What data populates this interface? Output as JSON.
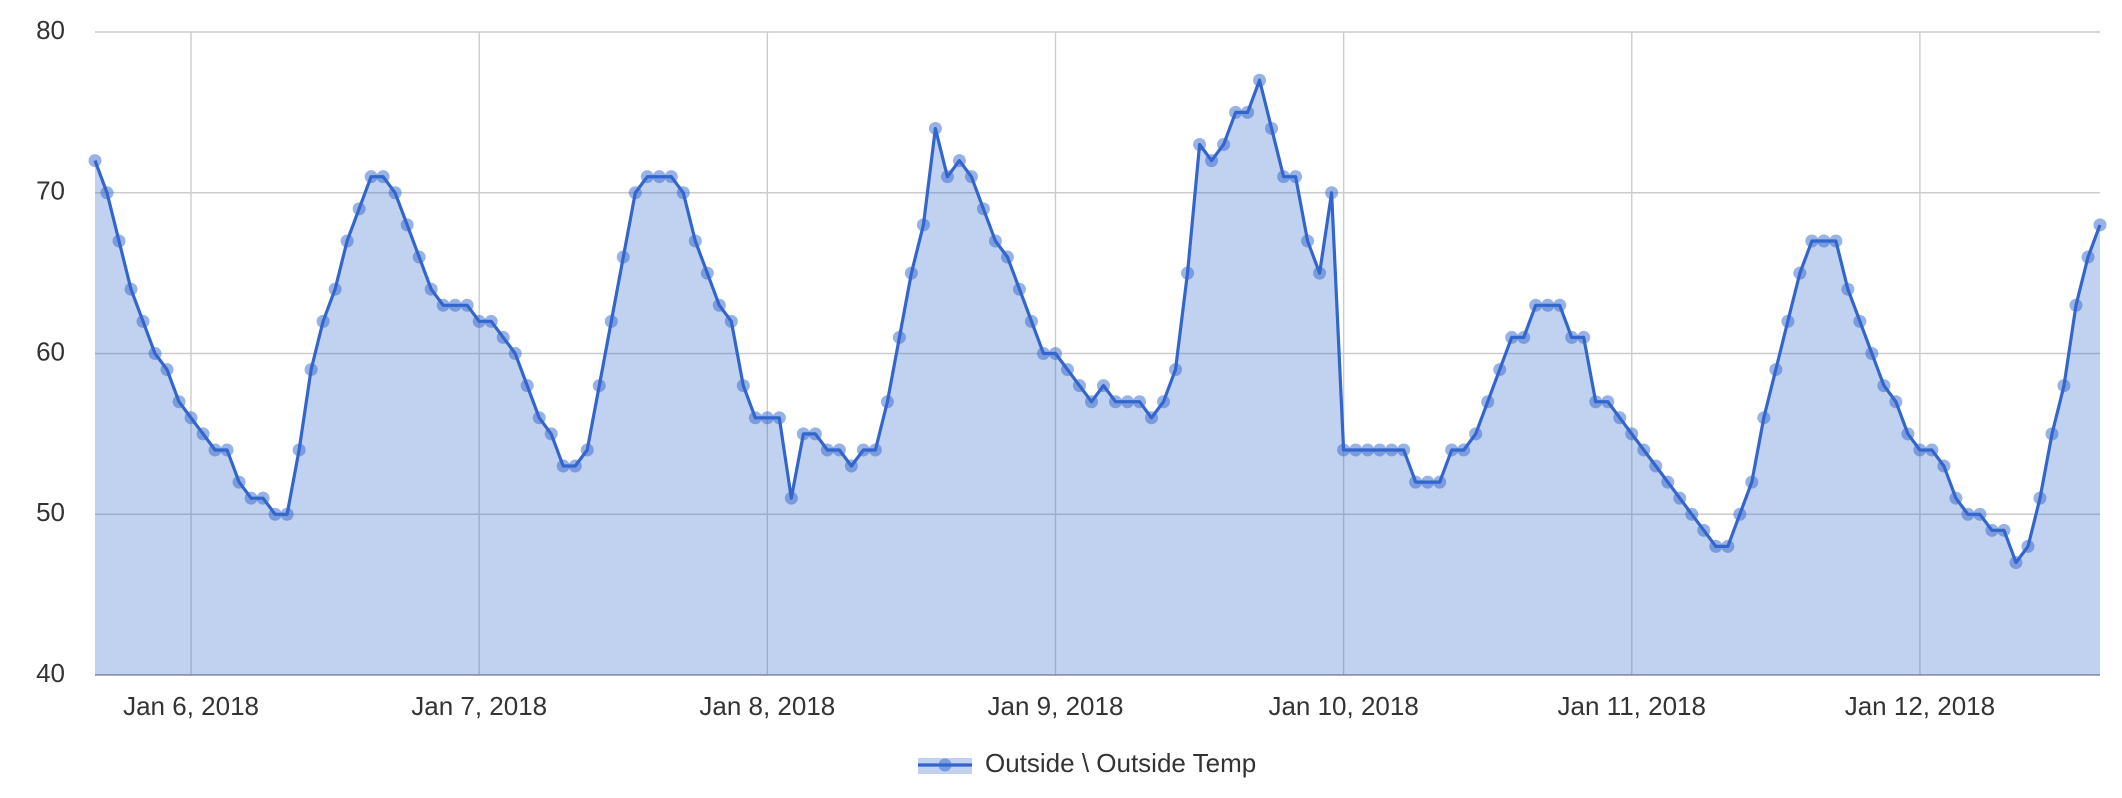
{
  "chart_data": {
    "type": "area",
    "x": [
      "2018-01-05T16:00",
      "2018-01-05T17:00",
      "2018-01-05T18:00",
      "2018-01-05T19:00",
      "2018-01-05T20:00",
      "2018-01-05T21:00",
      "2018-01-05T22:00",
      "2018-01-05T23:00",
      "2018-01-06T00:00",
      "2018-01-06T01:00",
      "2018-01-06T02:00",
      "2018-01-06T03:00",
      "2018-01-06T04:00",
      "2018-01-06T05:00",
      "2018-01-06T06:00",
      "2018-01-06T07:00",
      "2018-01-06T08:00",
      "2018-01-06T09:00",
      "2018-01-06T10:00",
      "2018-01-06T11:00",
      "2018-01-06T12:00",
      "2018-01-06T13:00",
      "2018-01-06T14:00",
      "2018-01-06T15:00",
      "2018-01-06T16:00",
      "2018-01-06T17:00",
      "2018-01-06T18:00",
      "2018-01-06T19:00",
      "2018-01-06T20:00",
      "2018-01-06T21:00",
      "2018-01-06T22:00",
      "2018-01-06T23:00",
      "2018-01-07T00:00",
      "2018-01-07T01:00",
      "2018-01-07T02:00",
      "2018-01-07T03:00",
      "2018-01-07T04:00",
      "2018-01-07T05:00",
      "2018-01-07T06:00",
      "2018-01-07T07:00",
      "2018-01-07T08:00",
      "2018-01-07T09:00",
      "2018-01-07T10:00",
      "2018-01-07T11:00",
      "2018-01-07T12:00",
      "2018-01-07T13:00",
      "2018-01-07T14:00",
      "2018-01-07T15:00",
      "2018-01-07T16:00",
      "2018-01-07T17:00",
      "2018-01-07T18:00",
      "2018-01-07T19:00",
      "2018-01-07T20:00",
      "2018-01-07T21:00",
      "2018-01-07T22:00",
      "2018-01-07T23:00",
      "2018-01-08T00:00",
      "2018-01-08T01:00",
      "2018-01-08T02:00",
      "2018-01-08T03:00",
      "2018-01-08T04:00",
      "2018-01-08T05:00",
      "2018-01-08T06:00",
      "2018-01-08T07:00",
      "2018-01-08T08:00",
      "2018-01-08T09:00",
      "2018-01-08T10:00",
      "2018-01-08T11:00",
      "2018-01-08T12:00",
      "2018-01-08T13:00",
      "2018-01-08T14:00",
      "2018-01-08T15:00",
      "2018-01-08T16:00",
      "2018-01-08T17:00",
      "2018-01-08T18:00",
      "2018-01-08T19:00",
      "2018-01-08T20:00",
      "2018-01-08T21:00",
      "2018-01-08T22:00",
      "2018-01-08T23:00",
      "2018-01-09T00:00",
      "2018-01-09T01:00",
      "2018-01-09T02:00",
      "2018-01-09T03:00",
      "2018-01-09T04:00",
      "2018-01-09T05:00",
      "2018-01-09T06:00",
      "2018-01-09T07:00",
      "2018-01-09T08:00",
      "2018-01-09T09:00",
      "2018-01-09T10:00",
      "2018-01-09T11:00",
      "2018-01-09T12:00",
      "2018-01-09T13:00",
      "2018-01-09T14:00",
      "2018-01-09T15:00",
      "2018-01-09T16:00",
      "2018-01-09T17:00",
      "2018-01-09T18:00",
      "2018-01-09T19:00",
      "2018-01-09T20:00",
      "2018-01-09T21:00",
      "2018-01-09T22:00",
      "2018-01-09T23:00",
      "2018-01-10T00:00",
      "2018-01-10T01:00",
      "2018-01-10T02:00",
      "2018-01-10T03:00",
      "2018-01-10T04:00",
      "2018-01-10T05:00",
      "2018-01-10T06:00",
      "2018-01-10T07:00",
      "2018-01-10T08:00",
      "2018-01-10T09:00",
      "2018-01-10T10:00",
      "2018-01-10T11:00",
      "2018-01-10T12:00",
      "2018-01-10T13:00",
      "2018-01-10T14:00",
      "2018-01-10T15:00",
      "2018-01-10T16:00",
      "2018-01-10T17:00",
      "2018-01-10T18:00",
      "2018-01-10T19:00",
      "2018-01-10T20:00",
      "2018-01-10T21:00",
      "2018-01-10T22:00",
      "2018-01-10T23:00",
      "2018-01-11T00:00",
      "2018-01-11T01:00",
      "2018-01-11T02:00",
      "2018-01-11T03:00",
      "2018-01-11T04:00",
      "2018-01-11T05:00",
      "2018-01-11T06:00",
      "2018-01-11T07:00",
      "2018-01-11T08:00",
      "2018-01-11T09:00",
      "2018-01-11T10:00",
      "2018-01-11T11:00",
      "2018-01-11T12:00",
      "2018-01-11T13:00",
      "2018-01-11T14:00",
      "2018-01-11T15:00",
      "2018-01-11T16:00",
      "2018-01-11T17:00",
      "2018-01-11T18:00",
      "2018-01-11T19:00",
      "2018-01-11T20:00",
      "2018-01-11T21:00",
      "2018-01-11T22:00",
      "2018-01-11T23:00",
      "2018-01-12T00:00",
      "2018-01-12T01:00",
      "2018-01-12T02:00",
      "2018-01-12T03:00",
      "2018-01-12T04:00",
      "2018-01-12T05:00",
      "2018-01-12T06:00",
      "2018-01-12T07:00",
      "2018-01-12T08:00",
      "2018-01-12T09:00",
      "2018-01-12T10:00",
      "2018-01-12T11:00",
      "2018-01-12T12:00",
      "2018-01-12T13:00",
      "2018-01-12T14:00",
      "2018-01-12T15:00"
    ],
    "series": [
      {
        "name": "Outside \\ Outside Temp",
        "color": "#3366cc",
        "values": [
          72,
          70,
          67,
          64,
          62,
          60,
          59,
          57,
          56,
          55,
          54,
          54,
          52,
          51,
          51,
          50,
          50,
          54,
          59,
          62,
          64,
          67,
          69,
          71,
          71,
          70,
          68,
          66,
          64,
          63,
          63,
          63,
          62,
          62,
          61,
          60,
          58,
          56,
          55,
          53,
          53,
          54,
          58,
          62,
          66,
          70,
          71,
          71,
          71,
          70,
          67,
          65,
          63,
          62,
          58,
          56,
          56,
          56,
          51,
          55,
          55,
          54,
          54,
          53,
          54,
          54,
          57,
          61,
          65,
          68,
          74,
          71,
          72,
          71,
          69,
          67,
          66,
          64,
          62,
          60,
          60,
          59,
          58,
          57,
          58,
          57,
          57,
          57,
          56,
          57,
          59,
          65,
          73,
          72,
          73,
          75,
          75,
          77,
          74,
          71,
          71,
          67,
          65,
          70,
          54,
          54,
          54,
          54,
          54,
          54,
          52,
          52,
          52,
          54,
          54,
          55,
          57,
          59,
          61,
          61,
          63,
          63,
          63,
          61,
          61,
          57,
          57,
          56,
          55,
          54,
          53,
          52,
          51,
          50,
          49,
          48,
          48,
          50,
          52,
          56,
          59,
          62,
          65,
          67,
          67,
          67,
          64,
          62,
          60,
          58,
          57,
          55,
          54,
          54,
          53,
          51,
          50,
          50,
          49,
          49,
          47,
          48,
          51,
          55,
          58,
          63,
          66,
          68
        ]
      }
    ],
    "xlim": [
      "2018-01-05T16:00",
      "2018-01-12T15:00"
    ],
    "xticks": [
      {
        "value": "2018-01-06T00:00",
        "label": "Jan 6, 2018"
      },
      {
        "value": "2018-01-07T00:00",
        "label": "Jan 7, 2018"
      },
      {
        "value": "2018-01-08T00:00",
        "label": "Jan 8, 2018"
      },
      {
        "value": "2018-01-09T00:00",
        "label": "Jan 9, 2018"
      },
      {
        "value": "2018-01-10T00:00",
        "label": "Jan 10, 2018"
      },
      {
        "value": "2018-01-11T00:00",
        "label": "Jan 11, 2018"
      },
      {
        "value": "2018-01-12T00:00",
        "label": "Jan 12, 2018"
      }
    ],
    "ylim": [
      40,
      80
    ],
    "yticks": [
      40,
      50,
      60,
      70,
      80
    ],
    "grid": true,
    "legend": "bottom"
  }
}
